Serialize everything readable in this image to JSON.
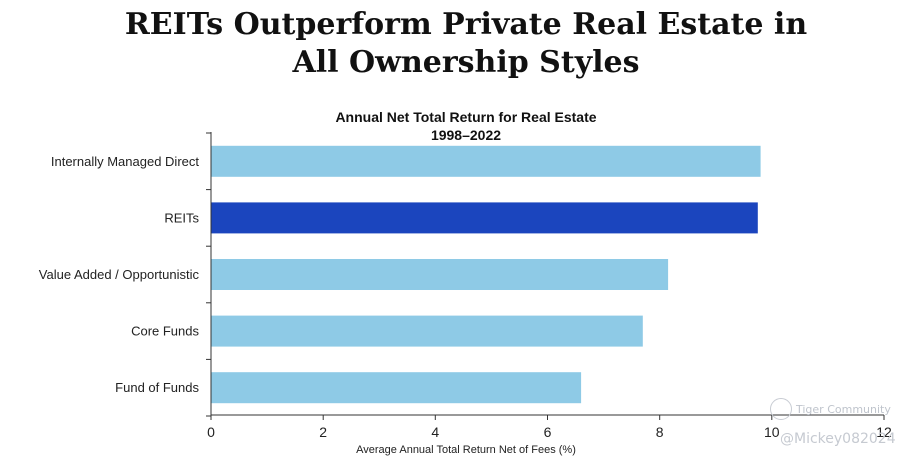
{
  "headline": {
    "line1": "REITs Outperform Private Real Estate in",
    "line2": "All Ownership Styles"
  },
  "chart_data": {
    "type": "bar",
    "orientation": "horizontal",
    "title": "Annual Net Total Return for Real Estate",
    "subtitle": "1998–2022",
    "xlabel": "Average Annual Total Return Net of Fees (%)",
    "ylabel": "",
    "xlim": [
      0,
      12
    ],
    "xticks": [
      0,
      2,
      4,
      6,
      8,
      10,
      12
    ],
    "grid": false,
    "categories": [
      "Internally Managed Direct",
      "REITs",
      "Value Added / Opportunistic",
      "Core Funds",
      "Fund of Funds"
    ],
    "values": [
      9.8,
      9.75,
      8.15,
      7.7,
      6.6
    ],
    "colors": [
      "#8ecae6",
      "#1b45be",
      "#8ecae6",
      "#8ecae6",
      "#8ecae6"
    ]
  },
  "watermark": {
    "brand": "Tiger Community",
    "user": "@Mickey082024",
    "logo_icon": "tiger-logo-icon"
  }
}
